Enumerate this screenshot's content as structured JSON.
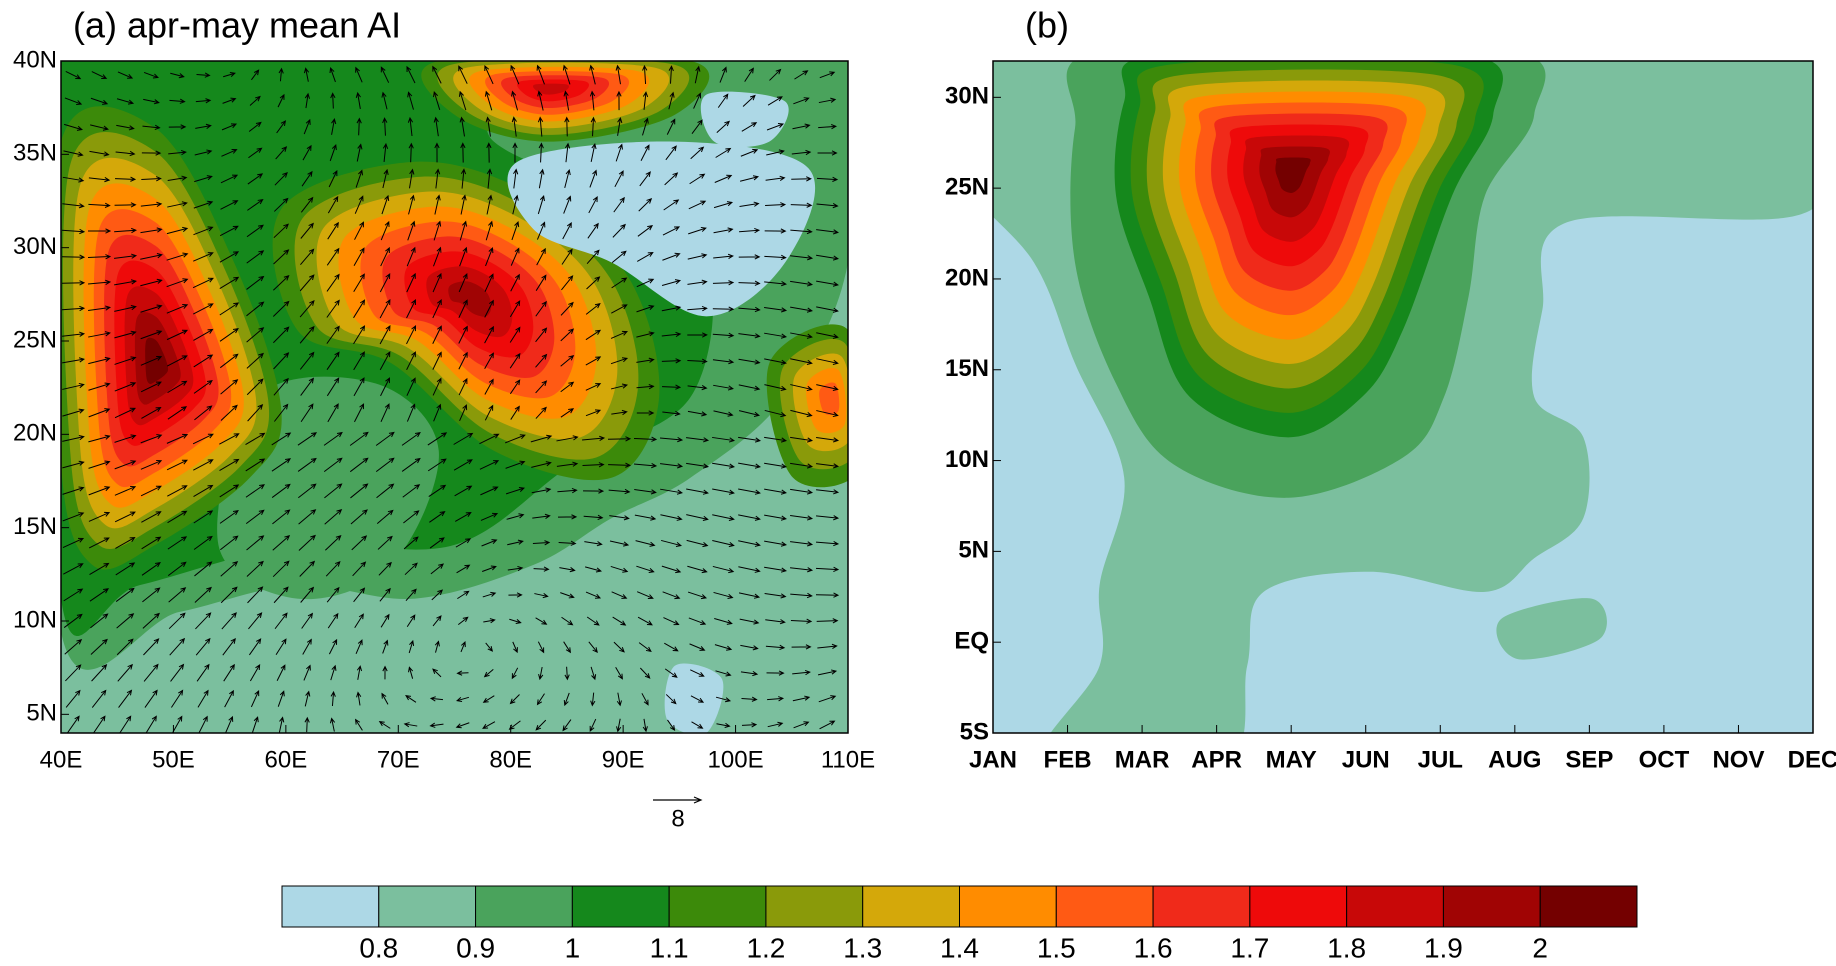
{
  "chart_data": [
    {
      "type": "contour-map",
      "title": "(a) apr-may mean AI",
      "xlim": [
        40,
        110
      ],
      "xticks": [
        {
          "value": 40,
          "label": "40E"
        },
        {
          "value": 50,
          "label": "50E"
        },
        {
          "value": 60,
          "label": "60E"
        },
        {
          "value": 70,
          "label": "70E"
        },
        {
          "value": 80,
          "label": "80E"
        },
        {
          "value": 90,
          "label": "90E"
        },
        {
          "value": 100,
          "label": "100E"
        },
        {
          "value": 110,
          "label": "110E"
        }
      ],
      "ylim": [
        4,
        40
      ],
      "yticks": [
        {
          "value": 5,
          "label": "5N"
        },
        {
          "value": 10,
          "label": "10N"
        },
        {
          "value": 15,
          "label": "15N"
        },
        {
          "value": 20,
          "label": "20N"
        },
        {
          "value": 25,
          "label": "25N"
        },
        {
          "value": 30,
          "label": "30N"
        },
        {
          "value": 35,
          "label": "35N"
        },
        {
          "value": 40,
          "label": "40N"
        }
      ],
      "vector_key": 8
    },
    {
      "type": "contour-time",
      "title": "(b)",
      "categories": [
        "JAN",
        "FEB",
        "MAR",
        "APR",
        "MAY",
        "JUN",
        "JUL",
        "AUG",
        "SEP",
        "OCT",
        "NOV",
        "DEC"
      ],
      "ylim": [
        -5,
        32
      ],
      "yticks": [
        {
          "value": -5,
          "label": "5S"
        },
        {
          "value": 0,
          "label": "EQ"
        },
        {
          "value": 5,
          "label": "5N"
        },
        {
          "value": 10,
          "label": "10N"
        },
        {
          "value": 15,
          "label": "15N"
        },
        {
          "value": 20,
          "label": "20N"
        },
        {
          "value": 25,
          "label": "25N"
        },
        {
          "value": 30,
          "label": "30N"
        }
      ]
    }
  ],
  "colorbar": {
    "levels": [
      0.8,
      0.9,
      1,
      1.1,
      1.2,
      1.3,
      1.4,
      1.5,
      1.6,
      1.7,
      1.8,
      1.9,
      2
    ],
    "colors": [
      "#add8e6",
      "#7bbf9e",
      "#4aa35c",
      "#15881c",
      "#3c8a0a",
      "#8a9a0a",
      "#d4a80a",
      "#ff8c00",
      "#ff5a14",
      "#f02a1a",
      "#ee0a0a",
      "#c80808",
      "#a00404",
      "#740000"
    ]
  }
}
